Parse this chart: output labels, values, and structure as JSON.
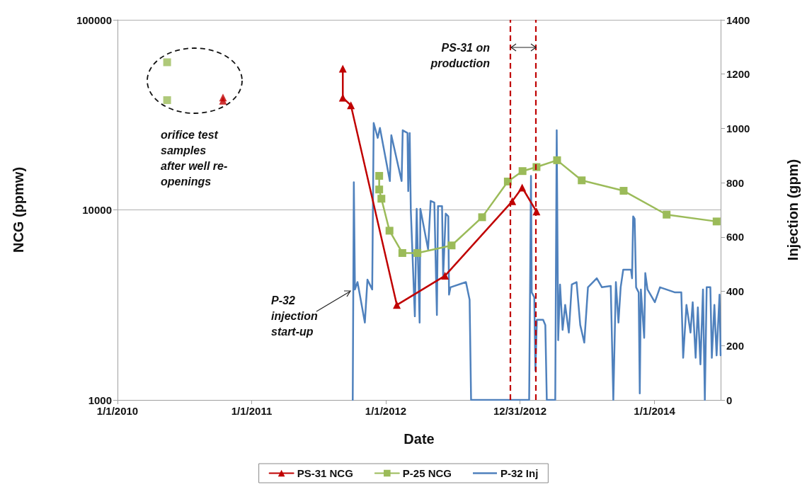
{
  "chart_data": {
    "type": "line",
    "xlabel": "Date",
    "ylabel": "NCG (ppmw)",
    "y2label": "Injection (gpm)",
    "xlim": [
      "2010-01-01",
      "2014-06-30"
    ],
    "xticks": [
      {
        "value": "2010-01-01",
        "label": "1/1/2010"
      },
      {
        "value": "2011-01-01",
        "label": "1/1/2011"
      },
      {
        "value": "2012-01-01",
        "label": "1/1/2012"
      },
      {
        "value": "2012-12-31",
        "label": "12/31/2012"
      },
      {
        "value": "2014-01-01",
        "label": "1/1/2014"
      }
    ],
    "log": "y",
    "ylim": [
      1000,
      100000
    ],
    "yticks": [
      1000,
      10000,
      100000
    ],
    "y2lim": [
      0,
      1400
    ],
    "y2ticks": [
      0,
      200,
      400,
      600,
      800,
      1000,
      1200,
      1400
    ],
    "grid": "y",
    "legend": "bottom",
    "series": [
      {
        "type": "scatter",
        "color": "#c00000",
        "marker": "triangle",
        "x": [
          "2010-10-15",
          "2010-10-15"
        ],
        "values": [
          39000,
          37500
        ]
      },
      {
        "type": "scatter",
        "color": "#9bbb59",
        "marker": "square",
        "x": [
          "2010-05-16",
          "2010-05-16"
        ],
        "values": [
          59800,
          37800
        ]
      },
      {
        "name": "PS-31 NCG",
        "color": "#c00000",
        "marker": "triangle",
        "x": [
          "2011-09-06",
          "2011-09-06",
          "2011-09-28",
          "2012-01-31",
          "2012-06-10",
          "2012-12-10",
          "2013-01-06",
          "2013-02-14"
        ],
        "values": [
          55300,
          38900,
          35500,
          3160,
          4500,
          11100,
          13100,
          9800
        ]
      },
      {
        "name": "P-25 NCG",
        "color": "#9bbb59",
        "marker": "square",
        "x": [
          "2011-12-14",
          "2011-12-14",
          "2011-12-20",
          "2012-01-11",
          "2012-02-15",
          "2012-03-27",
          "2012-06-28",
          "2012-09-19",
          "2012-11-28",
          "2013-01-07",
          "2013-02-14",
          "2013-04-11",
          "2013-06-17",
          "2013-10-09",
          "2014-02-03",
          "2014-06-19"
        ],
        "values": [
          15100,
          12800,
          11450,
          7770,
          5930,
          5930,
          6500,
          9150,
          14100,
          16000,
          16800,
          18250,
          14300,
          12600,
          9440,
          8690
        ]
      },
      {
        "name": "P-32 Inj",
        "color": "#4f81bd",
        "marker": "none",
        "axis": "y2",
        "x": [
          "2011-10-03",
          "2011-10-06",
          "2011-10-09",
          "2011-10-16",
          "2011-11-05",
          "2011-11-12",
          "2011-11-25",
          "2011-11-29",
          "2011-12-10",
          "2011-12-16",
          "2012-01-12",
          "2012-01-16",
          "2012-02-13",
          "2012-02-16",
          "2012-02-29",
          "2012-03-02",
          "2012-03-06",
          "2012-03-09",
          "2012-03-20",
          "2012-03-25",
          "2012-04-02",
          "2012-04-04",
          "2012-04-25",
          "2012-05-02",
          "2012-05-12",
          "2012-05-19",
          "2012-05-22",
          "2012-06-02",
          "2012-06-05",
          "2012-06-12",
          "2012-06-19",
          "2012-06-21",
          "2012-06-25",
          "2012-08-06",
          "2012-08-16",
          "2012-08-20",
          "2013-01-25",
          "2013-01-30",
          "2013-02-01",
          "2013-02-08",
          "2013-02-11",
          "2013-02-15",
          "2013-03-04",
          "2013-03-10",
          "2013-03-14",
          "2013-04-06",
          "2013-04-10",
          "2013-04-14",
          "2013-04-19",
          "2013-04-26",
          "2013-05-03",
          "2013-05-13",
          "2013-05-21",
          "2013-06-03",
          "2013-06-13",
          "2013-06-24",
          "2013-07-04",
          "2013-07-28",
          "2013-08-11",
          "2013-09-04",
          "2013-09-11",
          "2013-09-18",
          "2013-09-25",
          "2013-10-01",
          "2013-10-08",
          "2013-10-29",
          "2013-11-01",
          "2013-11-04",
          "2013-11-08",
          "2013-11-12",
          "2013-11-19",
          "2013-11-22",
          "2013-11-25",
          "2013-12-04",
          "2013-12-07",
          "2013-12-13",
          "2014-01-02",
          "2014-01-16",
          "2014-02-26",
          "2014-03-15",
          "2014-03-20",
          "2014-03-29",
          "2014-04-09",
          "2014-04-15",
          "2014-04-23",
          "2014-04-29",
          "2014-05-06",
          "2014-05-13",
          "2014-05-18",
          "2014-05-23",
          "2014-06-02",
          "2014-06-06",
          "2014-06-13",
          "2014-06-19",
          "2014-06-27",
          "2014-06-30"
        ],
        "values": [
          0,
          802,
          407,
          434,
          285,
          443,
          407,
          1020,
          965,
          1002,
          806,
          975,
          806,
          993,
          983,
          769,
          983,
          699,
          308,
          704,
          285,
          704,
          555,
          733,
          727,
          313,
          714,
          714,
          454,
          686,
          676,
          388,
          415,
          434,
          369,
          0,
          0,
          825,
          396,
          378,
          108,
          295,
          295,
          276,
          0,
          0,
          993,
          220,
          425,
          258,
          350,
          248,
          425,
          434,
          276,
          211,
          415,
          448,
          415,
          420,
          0,
          434,
          285,
          415,
          480,
          480,
          448,
          676,
          667,
          415,
          396,
          24,
          407,
          229,
          467,
          407,
          360,
          415,
          396,
          396,
          155,
          350,
          248,
          360,
          155,
          341,
          131,
          407,
          0,
          415,
          415,
          155,
          350,
          164,
          388,
          164
        ]
      }
    ],
    "ref_lines": [
      {
        "axis": "x",
        "value": "2012-12-04",
        "color": "#c00000",
        "line_style": "dashed"
      },
      {
        "axis": "x",
        "value": "2013-02-12",
        "color": "#c00000",
        "line_style": "dashed"
      }
    ],
    "annotations": [
      "orifice test samples after well re-openings",
      "P-32 injection start-up",
      "PS-31 on production"
    ]
  }
}
